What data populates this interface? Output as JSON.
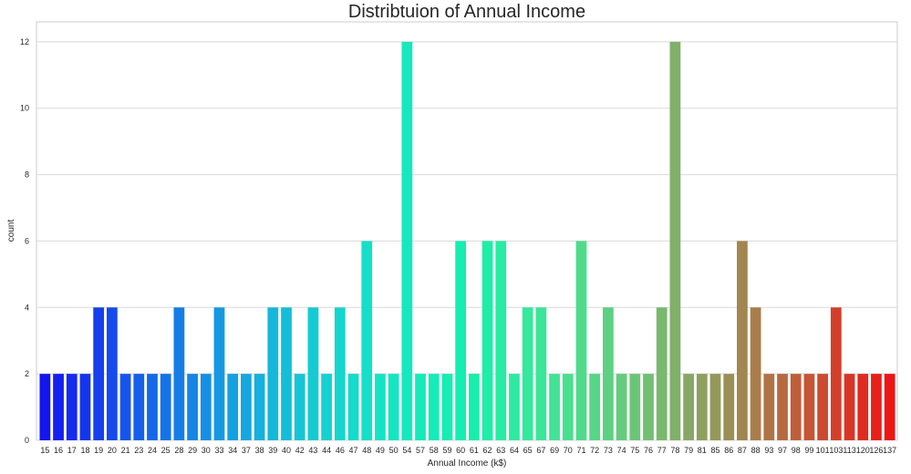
{
  "chart_data": {
    "type": "bar",
    "title": "Distribtuion of Annual Income",
    "xlabel": "Annual Income (k$)",
    "ylabel": "count",
    "ylim": [
      0,
      12.6
    ],
    "yticks": [
      0,
      2,
      4,
      6,
      8,
      10,
      12
    ],
    "grid": true,
    "palette": "rainbow",
    "categories": [
      "15",
      "16",
      "17",
      "18",
      "19",
      "20",
      "21",
      "23",
      "24",
      "25",
      "28",
      "29",
      "30",
      "33",
      "34",
      "37",
      "38",
      "39",
      "40",
      "42",
      "43",
      "44",
      "46",
      "47",
      "48",
      "49",
      "50",
      "54",
      "57",
      "58",
      "59",
      "60",
      "61",
      "62",
      "63",
      "64",
      "65",
      "67",
      "69",
      "70",
      "71",
      "72",
      "73",
      "74",
      "75",
      "76",
      "77",
      "78",
      "79",
      "81",
      "85",
      "86",
      "87",
      "88",
      "93",
      "97",
      "98",
      "99",
      "101",
      "103",
      "113",
      "120",
      "126",
      "137"
    ],
    "values": [
      2,
      2,
      2,
      2,
      4,
      4,
      2,
      2,
      2,
      2,
      4,
      2,
      2,
      4,
      2,
      2,
      2,
      4,
      4,
      2,
      4,
      2,
      4,
      2,
      6,
      2,
      2,
      12,
      2,
      2,
      2,
      6,
      2,
      6,
      6,
      2,
      4,
      4,
      2,
      2,
      6,
      2,
      4,
      2,
      2,
      2,
      4,
      12,
      2,
      2,
      2,
      2,
      6,
      4,
      2,
      2,
      2,
      2,
      2,
      4,
      2,
      2,
      2,
      2
    ]
  }
}
